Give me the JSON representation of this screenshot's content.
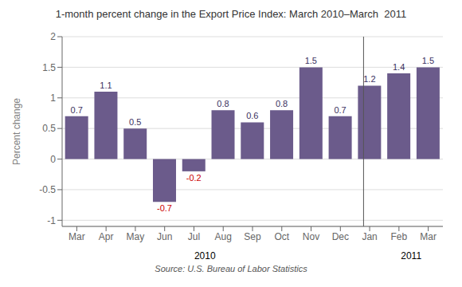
{
  "chart_data": {
    "type": "bar",
    "title": "1-month percent change in the Export Price Index: March 2010–March  2011",
    "categories": [
      "Mar",
      "Apr",
      "May",
      "Jun",
      "Jul",
      "Aug",
      "Sep",
      "Oct",
      "Nov",
      "Dec",
      "Jan",
      "Feb",
      "Mar"
    ],
    "values": [
      0.7,
      1.1,
      0.5,
      -0.7,
      -0.2,
      0.8,
      0.6,
      0.8,
      1.5,
      0.7,
      1.2,
      1.4,
      1.5
    ],
    "color": "#6B5B8B",
    "ylabel": "Percent change",
    "ylim": [
      -1.1,
      2.0
    ],
    "yticks": [
      -1.0,
      -0.5,
      0.0,
      0.5,
      1.0,
      1.5,
      2.0
    ],
    "grid": true,
    "data_labels": true,
    "annotations": [
      {
        "text": "2010",
        "x": 4.5
      },
      {
        "text": "2011",
        "x": 11.0
      },
      {
        "text": "Source: U.S. Bureau of Labor Statistics"
      }
    ],
    "vlines": [
      9.5
    ]
  }
}
